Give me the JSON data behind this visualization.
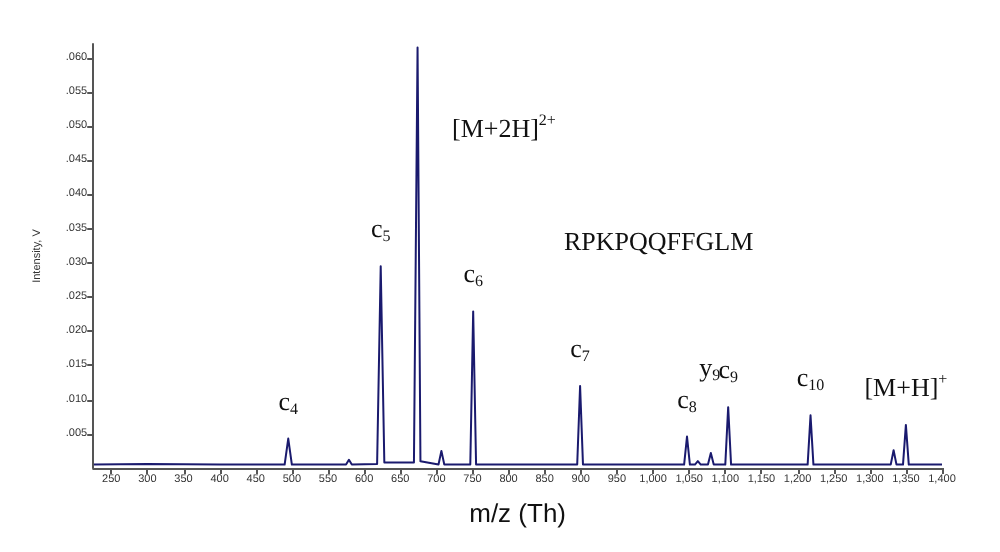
{
  "chart_data": {
    "type": "line",
    "xlabel": "m/z (Th)",
    "ylabel": "Intensity, V",
    "x": [
      226,
      300,
      400,
      490,
      495,
      500,
      575,
      579,
      583,
      618,
      623,
      628,
      669,
      674,
      678,
      703,
      707,
      711,
      747,
      751,
      755,
      850,
      895,
      899,
      903,
      1000,
      1043,
      1047,
      1051,
      1058,
      1062,
      1066,
      1076,
      1080,
      1084,
      1100,
      1104,
      1108,
      1214,
      1218,
      1222,
      1329,
      1333,
      1337,
      1346,
      1350,
      1354,
      1400
    ],
    "series": [
      {
        "color": "#1a1a6e",
        "values": [
          0.0005,
          0.0006,
          0.0005,
          0.0005,
          0.0043,
          0.0005,
          0.0005,
          0.0012,
          0.0005,
          0.0006,
          0.0295,
          0.0008,
          0.0008,
          0.0615,
          0.001,
          0.0005,
          0.0025,
          0.0005,
          0.0005,
          0.0229,
          0.0005,
          0.0005,
          0.0005,
          0.012,
          0.0005,
          0.0005,
          0.0005,
          0.0046,
          0.0005,
          0.0005,
          0.001,
          0.0005,
          0.0005,
          0.0022,
          0.0005,
          0.0005,
          0.0089,
          0.0005,
          0.0005,
          0.0077,
          0.0005,
          0.0005,
          0.0026,
          0.0005,
          0.0005,
          0.0063,
          0.0005,
          0.0005
        ]
      }
    ],
    "xlim": [
      225,
      1400
    ],
    "xticks": [
      250,
      300,
      350,
      400,
      450,
      500,
      550,
      600,
      650,
      700,
      750,
      800,
      850,
      900,
      950,
      {
        "value": 1000,
        "label": "1,000"
      },
      {
        "value": 1050,
        "label": "1,050"
      },
      {
        "value": 1100,
        "label": "1,100"
      },
      {
        "value": 1150,
        "label": "1,150"
      },
      {
        "value": 1200,
        "label": "1,200"
      },
      {
        "value": 1250,
        "label": "1,250"
      },
      {
        "value": 1300,
        "label": "1,300"
      },
      {
        "value": 1350,
        "label": "1,350"
      },
      {
        "value": 1400,
        "label": "1,400"
      }
    ],
    "ylim": [
      0,
      0.062
    ],
    "yticks": [
      {
        "value": 0.005,
        "label": ".005"
      },
      {
        "value": 0.01,
        "label": ".010"
      },
      {
        "value": 0.015,
        "label": ".015"
      },
      {
        "value": 0.02,
        "label": ".020"
      },
      {
        "value": 0.025,
        "label": ".025"
      },
      {
        "value": 0.03,
        "label": ".030"
      },
      {
        "value": 0.035,
        "label": ".035"
      },
      {
        "value": 0.04,
        "label": ".040"
      },
      {
        "value": 0.045,
        "label": ".045"
      },
      {
        "value": 0.05,
        "label": ".050"
      },
      {
        "value": 0.055,
        "label": ".055"
      },
      {
        "value": 0.06,
        "label": ".060"
      }
    ],
    "grid": false,
    "marker": "none",
    "line_style": "solid",
    "annotations": [
      {
        "text": "c$_{4}$",
        "x": 495,
        "y": 0.0043
      },
      {
        "text": "c$_{5}$",
        "x": 623,
        "y": 0.0295
      },
      {
        "text": "c$_{6}$",
        "x": 751,
        "y": 0.0229
      },
      {
        "text": "c$_{7}$",
        "x": 899,
        "y": 0.012
      },
      {
        "text": "c$_{8}$",
        "x": 1047,
        "y": 0.0046
      },
      {
        "text": "y$_{9}$",
        "x": 1062,
        "y": 0.001
      },
      {
        "text": "c$_{9}$",
        "x": 1104,
        "y": 0.0089
      },
      {
        "text": "c$_{10}$",
        "x": 1218,
        "y": 0.0077
      },
      {
        "text": "[M+H]$^{+}$",
        "x": 1350,
        "y": 0.0063
      },
      "[M+2H]$^{2+}$",
      "RPKPQQFFGLM"
    ]
  }
}
